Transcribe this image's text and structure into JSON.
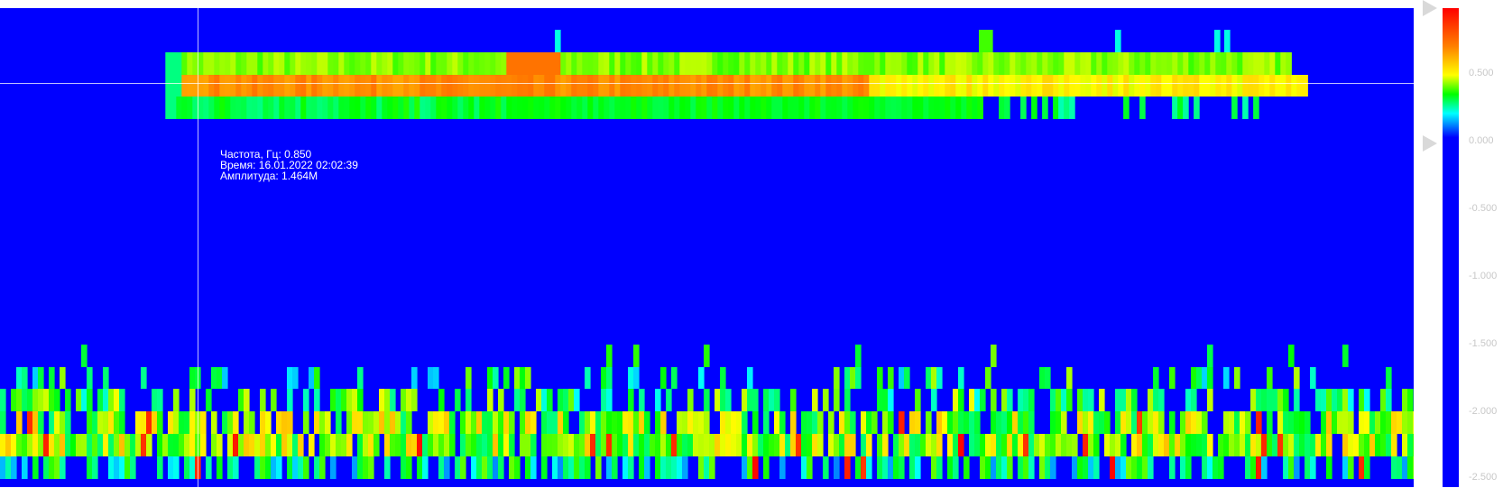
{
  "tooltip": {
    "frequency": "Частота, Гц: 0.850",
    "time": "Время: 16.01.2022 02:02:39",
    "amplitude": "Амплитуда: 1.464M"
  },
  "chart_data": {
    "type": "heatmap",
    "title": "",
    "xlabel": "",
    "ylabel": "",
    "background_color": "#0000ff",
    "colorscale": [
      "#0000ff",
      "#00ffff",
      "#00ff00",
      "#ffff00",
      "#ff8000",
      "#ff0000"
    ],
    "colorbar": {
      "ticks": [
        "0.500",
        "0.000",
        "-0.500",
        "-1.000",
        "-1.500",
        "-2.000",
        "-2.500"
      ],
      "range": [
        -2.5,
        0.95
      ]
    },
    "bands": [
      {
        "name": "",
        "row_index": 0,
        "x_range": [
          0.117,
          0.913
        ],
        "level": 0.55
      },
      {
        "name": "",
        "row_index": 1,
        "x_range": [
          0.117,
          0.923
        ],
        "level": 0.9
      },
      {
        "name": "",
        "row_index": 2,
        "x_range": [
          0.117,
          0.89
        ],
        "level": 0.45
      },
      {
        "name": "",
        "row_index": 3,
        "x_range": [
          0.0,
          1.0
        ],
        "level": 0.4
      }
    ],
    "crosshair": {
      "frequency": 0.85,
      "time": "16.01.2022 02:02:39",
      "amplitude": "1.464M"
    },
    "grid": false,
    "legend": "right-colorbar"
  }
}
